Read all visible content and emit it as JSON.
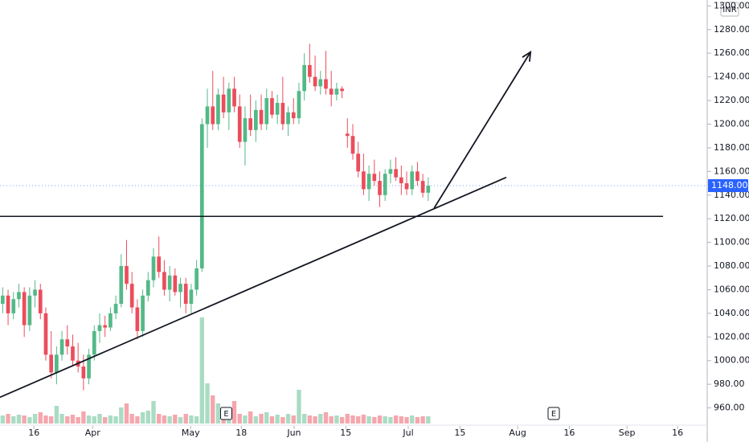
{
  "chart_data": {
    "type": "candlestick",
    "currency": "INR",
    "up_color": "#53b987",
    "down_color": "#eb4d5c",
    "ylim": [
      957,
      1305
    ],
    "xlim": [
      -0.5,
      130.8
    ],
    "yticks": [
      {
        "value": 960,
        "label": "960.00"
      },
      {
        "value": 980,
        "label": "980.00"
      },
      {
        "value": 1000,
        "label": "1000.00"
      },
      {
        "value": 1020,
        "label": "1020.00"
      },
      {
        "value": 1040,
        "label": "1040.00"
      },
      {
        "value": 1060,
        "label": "1060.00"
      },
      {
        "value": 1080,
        "label": "1080.00"
      },
      {
        "value": 1100,
        "label": "1100.00"
      },
      {
        "value": 1120,
        "label": "1120.00"
      },
      {
        "value": 1140,
        "label": "1140.00"
      },
      {
        "value": 1160,
        "label": "1160.00"
      },
      {
        "value": 1180,
        "label": "1180.00"
      },
      {
        "value": 1200,
        "label": "1200.00"
      },
      {
        "value": 1220,
        "label": "1220.00"
      },
      {
        "value": 1240,
        "label": "1240.00"
      },
      {
        "value": 1260,
        "label": "1260.00"
      },
      {
        "value": 1280,
        "label": "1280.00"
      },
      {
        "value": 1300,
        "label": "1300.00"
      }
    ],
    "xticks": [
      {
        "value": 5.8,
        "label": "16"
      },
      {
        "value": 16.7,
        "label": "Apr"
      },
      {
        "value": 34.9,
        "label": "May"
      },
      {
        "value": 44.3,
        "label": "18"
      },
      {
        "value": 54.1,
        "label": "Jun"
      },
      {
        "value": 63.7,
        "label": "15"
      },
      {
        "value": 75.3,
        "label": "Jul"
      },
      {
        "value": 84.9,
        "label": "15"
      },
      {
        "value": 95.6,
        "label": "Aug"
      },
      {
        "value": 105.2,
        "label": "16"
      },
      {
        "value": 115.9,
        "label": "Sep"
      },
      {
        "value": 125.3,
        "label": "16"
      }
    ],
    "last_price": {
      "value": 1148,
      "label": "1148.00"
    },
    "events": [
      {
        "index": 41.5,
        "label": "E"
      },
      {
        "index": 102.3,
        "label": "E"
      }
    ],
    "ohlc": [
      [
        1048,
        1062,
        1040,
        1055
      ],
      [
        1055,
        1060,
        1030,
        1040
      ],
      [
        1040,
        1058,
        1035,
        1052
      ],
      [
        1052,
        1065,
        1045,
        1058
      ],
      [
        1058,
        1062,
        1020,
        1030
      ],
      [
        1030,
        1062,
        1025,
        1055
      ],
      [
        1055,
        1068,
        1045,
        1060
      ],
      [
        1060,
        1065,
        1035,
        1040
      ],
      [
        1040,
        1045,
        1000,
        1005
      ],
      [
        1005,
        1025,
        985,
        990
      ],
      [
        990,
        1012,
        980,
        1005
      ],
      [
        1005,
        1025,
        1000,
        1018
      ],
      [
        1018,
        1030,
        1005,
        1012
      ],
      [
        1012,
        1022,
        995,
        1000
      ],
      [
        1000,
        1015,
        990,
        995
      ],
      [
        995,
        1005,
        975,
        985
      ],
      [
        985,
        1010,
        980,
        1005
      ],
      [
        1005,
        1030,
        1000,
        1025
      ],
      [
        1025,
        1040,
        1015,
        1030
      ],
      [
        1030,
        1038,
        1020,
        1028
      ],
      [
        1028,
        1045,
        1025,
        1040
      ],
      [
        1040,
        1055,
        1035,
        1048
      ],
      [
        1048,
        1090,
        1045,
        1080
      ],
      [
        1080,
        1102,
        1060,
        1065
      ],
      [
        1065,
        1075,
        1040,
        1045
      ],
      [
        1045,
        1052,
        1018,
        1025
      ],
      [
        1025,
        1060,
        1020,
        1055
      ],
      [
        1055,
        1075,
        1050,
        1068
      ],
      [
        1068,
        1095,
        1062,
        1088
      ],
      [
        1088,
        1105,
        1070,
        1075
      ],
      [
        1075,
        1085,
        1055,
        1060
      ],
      [
        1060,
        1080,
        1050,
        1072
      ],
      [
        1072,
        1078,
        1055,
        1058
      ],
      [
        1058,
        1070,
        1045,
        1065
      ],
      [
        1065,
        1070,
        1040,
        1048
      ],
      [
        1048,
        1065,
        1040,
        1060
      ],
      [
        1060,
        1085,
        1055,
        1078
      ],
      [
        1078,
        1205,
        1075,
        1200
      ],
      [
        1200,
        1230,
        1180,
        1215
      ],
      [
        1215,
        1245,
        1195,
        1200
      ],
      [
        1200,
        1230,
        1195,
        1225
      ],
      [
        1225,
        1240,
        1205,
        1210
      ],
      [
        1210,
        1235,
        1195,
        1230
      ],
      [
        1230,
        1240,
        1210,
        1215
      ],
      [
        1215,
        1225,
        1180,
        1185
      ],
      [
        1185,
        1215,
        1165,
        1205
      ],
      [
        1205,
        1225,
        1190,
        1195
      ],
      [
        1195,
        1220,
        1185,
        1212
      ],
      [
        1212,
        1225,
        1195,
        1200
      ],
      [
        1200,
        1230,
        1195,
        1222
      ],
      [
        1222,
        1228,
        1205,
        1208
      ],
      [
        1208,
        1225,
        1200,
        1218
      ],
      [
        1218,
        1240,
        1195,
        1200
      ],
      [
        1200,
        1215,
        1190,
        1210
      ],
      [
        1210,
        1222,
        1200,
        1205
      ],
      [
        1205,
        1235,
        1200,
        1228
      ],
      [
        1228,
        1260,
        1220,
        1250
      ],
      [
        1250,
        1268,
        1235,
        1240
      ],
      [
        1240,
        1258,
        1228,
        1232
      ],
      [
        1232,
        1245,
        1225,
        1238
      ],
      [
        1238,
        1262,
        1225,
        1230
      ],
      [
        1230,
        1245,
        1215,
        1225
      ],
      [
        1225,
        1235,
        1220,
        1230
      ],
      [
        1230,
        1232,
        1222,
        1228
      ],
      [
        1192,
        1205,
        1180,
        1190
      ],
      [
        1190,
        1200,
        1170,
        1175
      ],
      [
        1175,
        1185,
        1155,
        1160
      ],
      [
        1160,
        1175,
        1140,
        1145
      ],
      [
        1145,
        1165,
        1135,
        1158
      ],
      [
        1158,
        1170,
        1148,
        1152
      ],
      [
        1152,
        1160,
        1130,
        1140
      ],
      [
        1140,
        1162,
        1135,
        1158
      ],
      [
        1158,
        1170,
        1150,
        1162
      ],
      [
        1162,
        1172,
        1152,
        1155
      ],
      [
        1155,
        1165,
        1140,
        1150
      ],
      [
        1150,
        1160,
        1140,
        1145
      ],
      [
        1145,
        1165,
        1140,
        1160
      ],
      [
        1160,
        1168,
        1148,
        1152
      ],
      [
        1152,
        1158,
        1138,
        1142
      ],
      [
        1142,
        1155,
        1135,
        1148
      ]
    ],
    "volume": [
      10,
      12,
      9,
      11,
      10,
      8,
      12,
      14,
      10,
      9,
      22,
      12,
      9,
      11,
      8,
      15,
      10,
      9,
      12,
      8,
      10,
      9,
      20,
      25,
      12,
      9,
      14,
      16,
      28,
      12,
      10,
      9,
      11,
      8,
      12,
      10,
      9,
      132,
      50,
      35,
      25,
      14,
      18,
      28,
      12,
      10,
      15,
      9,
      12,
      14,
      9,
      11,
      8,
      12,
      10,
      42,
      12,
      10,
      9,
      12,
      14,
      9,
      10,
      8,
      12,
      10,
      9,
      11,
      9,
      8,
      10,
      9,
      8,
      10,
      9,
      8,
      10,
      8,
      9,
      9
    ],
    "drawings": [
      {
        "type": "hline",
        "price": 1122,
        "from": -0.5,
        "to": 122.6
      },
      {
        "type": "trend",
        "from": [
          -0.5,
          969
        ],
        "to": [
          93.5,
          1155
        ]
      },
      {
        "type": "arrow",
        "from": [
          80.1,
          1129
        ],
        "to": [
          98,
          1261
        ]
      }
    ]
  }
}
